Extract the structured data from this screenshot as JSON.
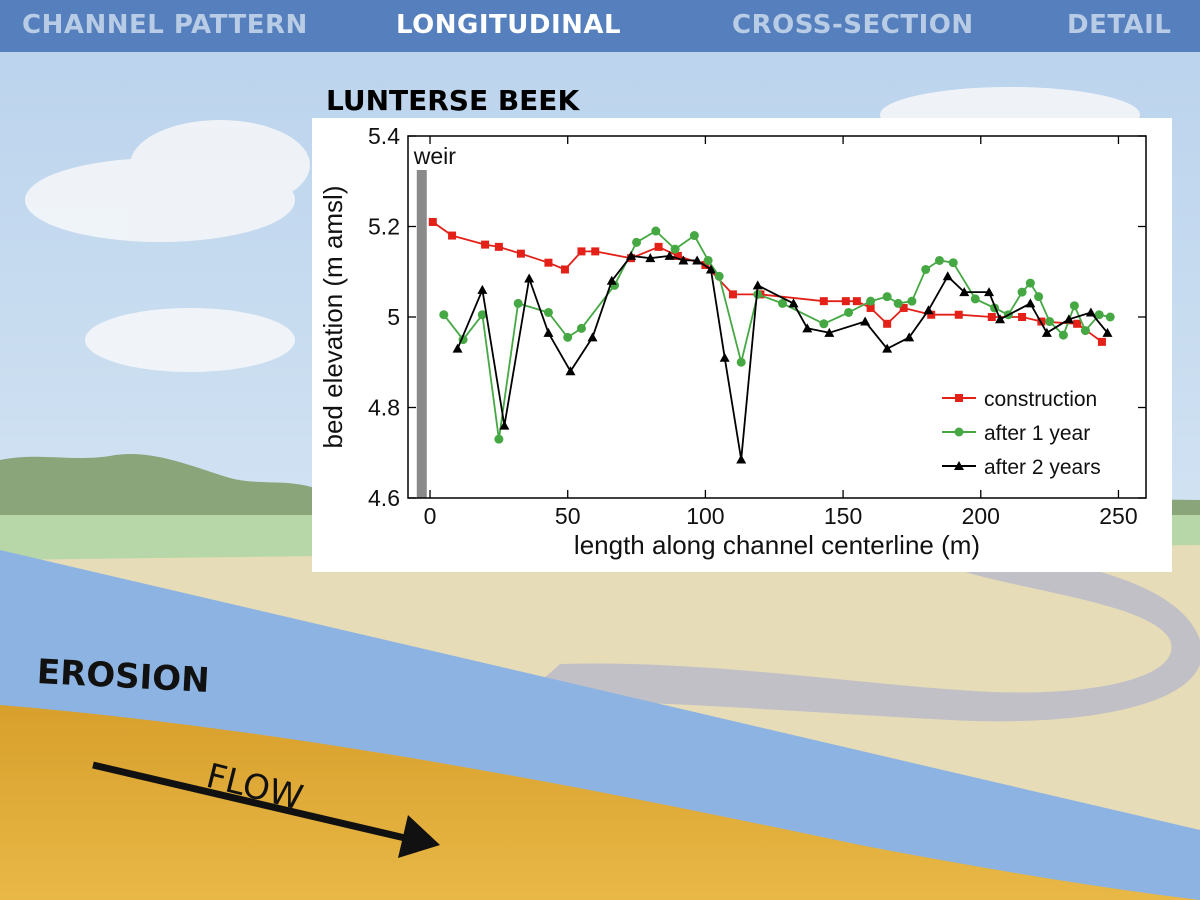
{
  "nav": {
    "tabs": [
      {
        "label": "CHANNEL PATTERN",
        "active": false
      },
      {
        "label": "LONGITUDINAL",
        "active": true
      },
      {
        "label": "CROSS-SECTION",
        "active": false
      },
      {
        "label": "DETAIL",
        "active": false
      }
    ]
  },
  "scene": {
    "erosion_label": "EROSION",
    "flow_label": "FLOW",
    "colors": {
      "sky": "#cfe0f0",
      "water": "#8db3e2",
      "sediment": "#dca83a",
      "nav": "#5580bd"
    }
  },
  "chart_data": {
    "type": "line",
    "title": "LUNTERSE BEEK",
    "xlabel": "length along channel centerline (m)",
    "ylabel": "bed elevation (m amsl)",
    "xlim": [
      -8,
      260
    ],
    "ylim": [
      4.6,
      5.4
    ],
    "xticks": [
      0,
      50,
      100,
      150,
      200,
      250
    ],
    "yticks": [
      4.6,
      4.8,
      5,
      5.2,
      5.4
    ],
    "ytick_labels": [
      "4.6",
      "4.8",
      "5",
      "5.2",
      "5.4"
    ],
    "grid": false,
    "legend_position": "bottom-right",
    "annotation": {
      "text": "weir",
      "x": -3
    },
    "series": [
      {
        "name": "construction",
        "color": "#e32119",
        "marker": "square",
        "x": [
          1,
          8,
          20,
          25,
          33,
          43,
          49,
          55,
          60,
          73,
          83,
          90,
          100,
          110,
          120,
          143,
          151,
          155,
          160,
          166,
          172,
          182,
          192,
          204,
          215,
          222,
          235,
          244
        ],
        "y": [
          5.21,
          5.18,
          5.16,
          5.155,
          5.14,
          5.12,
          5.105,
          5.145,
          5.145,
          5.13,
          5.155,
          5.135,
          5.115,
          5.05,
          5.05,
          5.035,
          5.035,
          5.035,
          5.02,
          4.985,
          5.02,
          5.005,
          5.005,
          5.0,
          5.0,
          4.99,
          4.985,
          4.945
        ]
      },
      {
        "name": "after 1 year",
        "color": "#45a843",
        "marker": "circle",
        "x": [
          5,
          12,
          19,
          25,
          32,
          43,
          50,
          55,
          67,
          75,
          82,
          89,
          96,
          101,
          105,
          113,
          119,
          128,
          143,
          152,
          160,
          166,
          170,
          175,
          180,
          185,
          190,
          198,
          205,
          210,
          215,
          218,
          221,
          225,
          230,
          234,
          238,
          243,
          247
        ],
        "y": [
          5.005,
          4.95,
          5.005,
          4.73,
          5.03,
          5.01,
          4.955,
          4.975,
          5.07,
          5.165,
          5.19,
          5.15,
          5.18,
          5.125,
          5.09,
          4.9,
          5.05,
          5.03,
          4.985,
          5.01,
          5.035,
          5.045,
          5.03,
          5.035,
          5.105,
          5.125,
          5.12,
          5.04,
          5.02,
          5.005,
          5.055,
          5.075,
          5.045,
          4.99,
          4.96,
          5.025,
          4.97,
          5.005,
          5.0
        ],
        "y_tuned": [
          5.005,
          4.95,
          5.005,
          4.73,
          5.03,
          5.01,
          4.955,
          4.975,
          5.07,
          5.165,
          5.19,
          5.15,
          5.18,
          5.125,
          5.09,
          4.9,
          5.05,
          5.03,
          4.985,
          5.01,
          5.035,
          5.045,
          5.03,
          5.035,
          5.105,
          5.125,
          5.12,
          5.04,
          5.02,
          5.005,
          5.055,
          5.075,
          5.045,
          4.99,
          4.96,
          5.025,
          4.97,
          5.005,
          5.0
        ]
      },
      {
        "name": "after 2 years",
        "color": "#000000",
        "marker": "triangle",
        "x": [
          10,
          19,
          27,
          36,
          43,
          51,
          59,
          66,
          73,
          80,
          87,
          92,
          97,
          102,
          107,
          113,
          119,
          132,
          137,
          145,
          158,
          166,
          174,
          181,
          188,
          194,
          203,
          207,
          218,
          224,
          232,
          240,
          246
        ],
        "y": [
          4.93,
          5.06,
          4.76,
          5.085,
          4.965,
          4.88,
          4.955,
          5.08,
          5.135,
          5.13,
          5.135,
          5.125,
          5.125,
          5.105,
          4.91,
          4.685,
          5.07,
          5.03,
          4.975,
          4.965,
          4.99,
          4.93,
          4.955,
          5.015,
          5.09,
          5.055,
          5.055,
          4.995,
          5.03,
          4.965,
          4.995,
          5.01,
          4.965
        ]
      }
    ]
  }
}
